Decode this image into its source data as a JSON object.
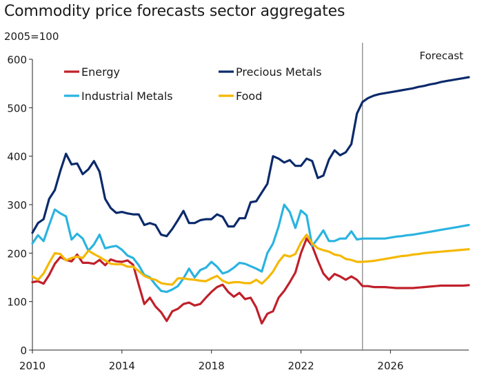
{
  "chart_data": {
    "type": "line",
    "title": "Commodity price forecasts sector aggregates",
    "unit_label": "2005=100",
    "forecast_label": "Forecast",
    "forecast_start": 2024.75,
    "xlim": [
      2010,
      2029.5
    ],
    "ylim": [
      0,
      600
    ],
    "x_ticks": [
      2010,
      2014,
      2018,
      2022,
      2026
    ],
    "y_ticks": [
      0,
      100,
      200,
      300,
      400,
      500,
      600
    ],
    "grid": false,
    "legend_placement": "top-left",
    "x": [
      2010,
      2010.25,
      2010.5,
      2010.75,
      2011,
      2011.25,
      2011.5,
      2011.75,
      2012,
      2012.25,
      2012.5,
      2012.75,
      2013,
      2013.25,
      2013.5,
      2013.75,
      2014,
      2014.25,
      2014.5,
      2014.75,
      2015,
      2015.25,
      2015.5,
      2015.75,
      2016,
      2016.25,
      2016.5,
      2016.75,
      2017,
      2017.25,
      2017.5,
      2017.75,
      2018,
      2018.25,
      2018.5,
      2018.75,
      2019,
      2019.25,
      2019.5,
      2019.75,
      2020,
      2020.25,
      2020.5,
      2020.75,
      2021,
      2021.25,
      2021.5,
      2021.75,
      2022,
      2022.25,
      2022.5,
      2022.75,
      2023,
      2023.25,
      2023.5,
      2023.75,
      2024,
      2024.25,
      2024.5,
      2024.75,
      2025,
      2025.25,
      2025.5,
      2025.75,
      2026,
      2026.25,
      2026.5,
      2026.75,
      2027,
      2027.25,
      2027.5,
      2027.75,
      2028,
      2028.25,
      2028.5,
      2028.75,
      2029,
      2029.25,
      2029.5
    ],
    "series": [
      {
        "name": "Energy",
        "color": "#c0202a",
        "values": [
          140,
          142,
          137,
          155,
          178,
          192,
          186,
          183,
          197,
          180,
          180,
          178,
          186,
          175,
          187,
          183,
          182,
          185,
          176,
          135,
          95,
          108,
          90,
          78,
          60,
          80,
          85,
          95,
          98,
          92,
          95,
          108,
          120,
          130,
          135,
          120,
          110,
          118,
          105,
          108,
          88,
          55,
          75,
          80,
          108,
          122,
          140,
          160,
          200,
          230,
          215,
          185,
          158,
          145,
          157,
          152,
          145,
          152,
          145,
          132,
          132,
          130,
          130,
          130,
          129,
          128,
          128,
          128,
          128,
          129,
          130,
          131,
          132,
          133,
          133,
          133,
          133,
          133,
          134
        ]
      },
      {
        "name": "Precious Metals",
        "color": "#0b2a6b",
        "values": [
          242,
          262,
          270,
          312,
          330,
          370,
          405,
          383,
          385,
          363,
          373,
          390,
          368,
          312,
          293,
          283,
          285,
          282,
          280,
          280,
          258,
          262,
          258,
          238,
          235,
          250,
          268,
          287,
          262,
          262,
          268,
          270,
          270,
          280,
          275,
          255,
          255,
          272,
          272,
          305,
          307,
          325,
          343,
          400,
          395,
          387,
          392,
          380,
          380,
          395,
          390,
          355,
          360,
          393,
          412,
          402,
          408,
          425,
          488,
          512,
          520,
          525,
          528,
          530,
          532,
          534,
          536,
          538,
          540,
          543,
          545,
          548,
          550,
          553,
          555,
          557,
          559,
          561,
          563
        ]
      },
      {
        "name": "Industrial Metals",
        "color": "#2ab3e0",
        "values": [
          220,
          237,
          225,
          258,
          290,
          282,
          276,
          228,
          240,
          230,
          205,
          218,
          238,
          210,
          213,
          215,
          207,
          195,
          190,
          175,
          155,
          150,
          135,
          122,
          120,
          125,
          132,
          148,
          168,
          150,
          165,
          170,
          182,
          172,
          158,
          162,
          170,
          180,
          178,
          173,
          168,
          162,
          200,
          220,
          255,
          300,
          285,
          252,
          288,
          278,
          215,
          230,
          247,
          225,
          225,
          230,
          230,
          245,
          228,
          230,
          230,
          230,
          230,
          230,
          232,
          234,
          235,
          237,
          238,
          240,
          242,
          244,
          246,
          248,
          250,
          252,
          254,
          256,
          258
        ]
      },
      {
        "name": "Food",
        "color": "#f5b800",
        "values": [
          152,
          145,
          158,
          180,
          200,
          198,
          185,
          190,
          193,
          190,
          205,
          198,
          192,
          185,
          178,
          177,
          177,
          172,
          172,
          163,
          153,
          148,
          145,
          138,
          136,
          135,
          148,
          148,
          146,
          145,
          143,
          142,
          148,
          153,
          143,
          138,
          140,
          140,
          138,
          138,
          145,
          137,
          148,
          162,
          182,
          196,
          193,
          198,
          222,
          238,
          220,
          210,
          206,
          203,
          197,
          195,
          188,
          186,
          182,
          182,
          183,
          184,
          186,
          188,
          190,
          192,
          194,
          195,
          197,
          198,
          200,
          201,
          202,
          203,
          204,
          205,
          206,
          207,
          208
        ]
      }
    ]
  }
}
